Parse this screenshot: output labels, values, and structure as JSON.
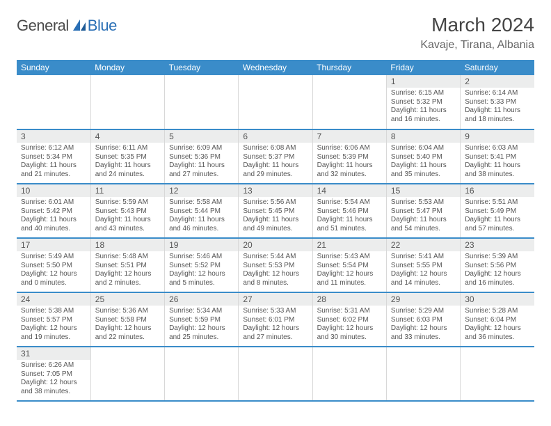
{
  "colors": {
    "header_bg": "#3a8cc9",
    "header_text": "#ffffff",
    "daynum_bg": "#eceded",
    "border": "#d8d8d8",
    "row_border": "#3a8cc9",
    "logo_gray": "#4a4a4a",
    "logo_blue": "#2a6fb5",
    "body_text": "#555555",
    "page_bg": "#ffffff"
  },
  "logo": {
    "general": "General",
    "blue": "Blue"
  },
  "title": "March 2024",
  "location": "Kavaje, Tirana, Albania",
  "day_headers": [
    "Sunday",
    "Monday",
    "Tuesday",
    "Wednesday",
    "Thursday",
    "Friday",
    "Saturday"
  ],
  "weeks": [
    [
      null,
      null,
      null,
      null,
      null,
      {
        "n": "1",
        "sr": "Sunrise: 6:15 AM",
        "ss": "Sunset: 5:32 PM",
        "dl1": "Daylight: 11 hours",
        "dl2": "and 16 minutes."
      },
      {
        "n": "2",
        "sr": "Sunrise: 6:14 AM",
        "ss": "Sunset: 5:33 PM",
        "dl1": "Daylight: 11 hours",
        "dl2": "and 18 minutes."
      }
    ],
    [
      {
        "n": "3",
        "sr": "Sunrise: 6:12 AM",
        "ss": "Sunset: 5:34 PM",
        "dl1": "Daylight: 11 hours",
        "dl2": "and 21 minutes."
      },
      {
        "n": "4",
        "sr": "Sunrise: 6:11 AM",
        "ss": "Sunset: 5:35 PM",
        "dl1": "Daylight: 11 hours",
        "dl2": "and 24 minutes."
      },
      {
        "n": "5",
        "sr": "Sunrise: 6:09 AM",
        "ss": "Sunset: 5:36 PM",
        "dl1": "Daylight: 11 hours",
        "dl2": "and 27 minutes."
      },
      {
        "n": "6",
        "sr": "Sunrise: 6:08 AM",
        "ss": "Sunset: 5:37 PM",
        "dl1": "Daylight: 11 hours",
        "dl2": "and 29 minutes."
      },
      {
        "n": "7",
        "sr": "Sunrise: 6:06 AM",
        "ss": "Sunset: 5:39 PM",
        "dl1": "Daylight: 11 hours",
        "dl2": "and 32 minutes."
      },
      {
        "n": "8",
        "sr": "Sunrise: 6:04 AM",
        "ss": "Sunset: 5:40 PM",
        "dl1": "Daylight: 11 hours",
        "dl2": "and 35 minutes."
      },
      {
        "n": "9",
        "sr": "Sunrise: 6:03 AM",
        "ss": "Sunset: 5:41 PM",
        "dl1": "Daylight: 11 hours",
        "dl2": "and 38 minutes."
      }
    ],
    [
      {
        "n": "10",
        "sr": "Sunrise: 6:01 AM",
        "ss": "Sunset: 5:42 PM",
        "dl1": "Daylight: 11 hours",
        "dl2": "and 40 minutes."
      },
      {
        "n": "11",
        "sr": "Sunrise: 5:59 AM",
        "ss": "Sunset: 5:43 PM",
        "dl1": "Daylight: 11 hours",
        "dl2": "and 43 minutes."
      },
      {
        "n": "12",
        "sr": "Sunrise: 5:58 AM",
        "ss": "Sunset: 5:44 PM",
        "dl1": "Daylight: 11 hours",
        "dl2": "and 46 minutes."
      },
      {
        "n": "13",
        "sr": "Sunrise: 5:56 AM",
        "ss": "Sunset: 5:45 PM",
        "dl1": "Daylight: 11 hours",
        "dl2": "and 49 minutes."
      },
      {
        "n": "14",
        "sr": "Sunrise: 5:54 AM",
        "ss": "Sunset: 5:46 PM",
        "dl1": "Daylight: 11 hours",
        "dl2": "and 51 minutes."
      },
      {
        "n": "15",
        "sr": "Sunrise: 5:53 AM",
        "ss": "Sunset: 5:47 PM",
        "dl1": "Daylight: 11 hours",
        "dl2": "and 54 minutes."
      },
      {
        "n": "16",
        "sr": "Sunrise: 5:51 AM",
        "ss": "Sunset: 5:49 PM",
        "dl1": "Daylight: 11 hours",
        "dl2": "and 57 minutes."
      }
    ],
    [
      {
        "n": "17",
        "sr": "Sunrise: 5:49 AM",
        "ss": "Sunset: 5:50 PM",
        "dl1": "Daylight: 12 hours",
        "dl2": "and 0 minutes."
      },
      {
        "n": "18",
        "sr": "Sunrise: 5:48 AM",
        "ss": "Sunset: 5:51 PM",
        "dl1": "Daylight: 12 hours",
        "dl2": "and 2 minutes."
      },
      {
        "n": "19",
        "sr": "Sunrise: 5:46 AM",
        "ss": "Sunset: 5:52 PM",
        "dl1": "Daylight: 12 hours",
        "dl2": "and 5 minutes."
      },
      {
        "n": "20",
        "sr": "Sunrise: 5:44 AM",
        "ss": "Sunset: 5:53 PM",
        "dl1": "Daylight: 12 hours",
        "dl2": "and 8 minutes."
      },
      {
        "n": "21",
        "sr": "Sunrise: 5:43 AM",
        "ss": "Sunset: 5:54 PM",
        "dl1": "Daylight: 12 hours",
        "dl2": "and 11 minutes."
      },
      {
        "n": "22",
        "sr": "Sunrise: 5:41 AM",
        "ss": "Sunset: 5:55 PM",
        "dl1": "Daylight: 12 hours",
        "dl2": "and 14 minutes."
      },
      {
        "n": "23",
        "sr": "Sunrise: 5:39 AM",
        "ss": "Sunset: 5:56 PM",
        "dl1": "Daylight: 12 hours",
        "dl2": "and 16 minutes."
      }
    ],
    [
      {
        "n": "24",
        "sr": "Sunrise: 5:38 AM",
        "ss": "Sunset: 5:57 PM",
        "dl1": "Daylight: 12 hours",
        "dl2": "and 19 minutes."
      },
      {
        "n": "25",
        "sr": "Sunrise: 5:36 AM",
        "ss": "Sunset: 5:58 PM",
        "dl1": "Daylight: 12 hours",
        "dl2": "and 22 minutes."
      },
      {
        "n": "26",
        "sr": "Sunrise: 5:34 AM",
        "ss": "Sunset: 5:59 PM",
        "dl1": "Daylight: 12 hours",
        "dl2": "and 25 minutes."
      },
      {
        "n": "27",
        "sr": "Sunrise: 5:33 AM",
        "ss": "Sunset: 6:01 PM",
        "dl1": "Daylight: 12 hours",
        "dl2": "and 27 minutes."
      },
      {
        "n": "28",
        "sr": "Sunrise: 5:31 AM",
        "ss": "Sunset: 6:02 PM",
        "dl1": "Daylight: 12 hours",
        "dl2": "and 30 minutes."
      },
      {
        "n": "29",
        "sr": "Sunrise: 5:29 AM",
        "ss": "Sunset: 6:03 PM",
        "dl1": "Daylight: 12 hours",
        "dl2": "and 33 minutes."
      },
      {
        "n": "30",
        "sr": "Sunrise: 5:28 AM",
        "ss": "Sunset: 6:04 PM",
        "dl1": "Daylight: 12 hours",
        "dl2": "and 36 minutes."
      }
    ],
    [
      {
        "n": "31",
        "sr": "Sunrise: 6:26 AM",
        "ss": "Sunset: 7:05 PM",
        "dl1": "Daylight: 12 hours",
        "dl2": "and 38 minutes."
      },
      null,
      null,
      null,
      null,
      null,
      null
    ]
  ]
}
